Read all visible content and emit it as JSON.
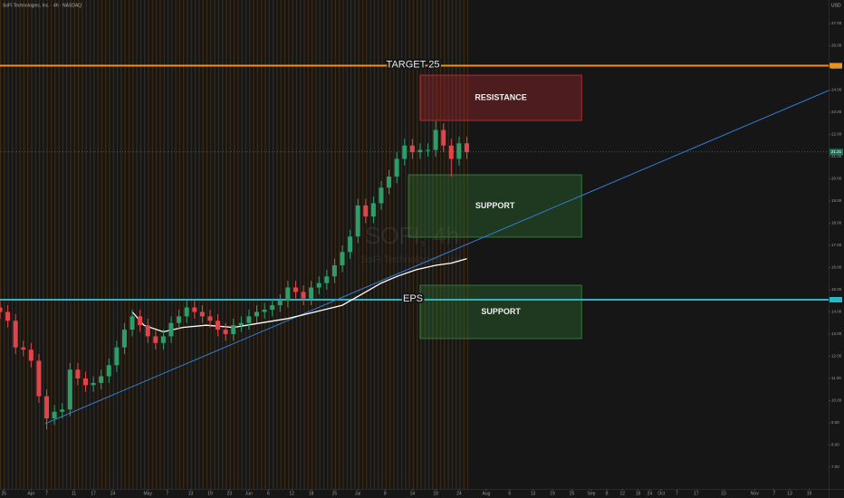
{
  "chart_data": {
    "type": "candlestick",
    "title": "SoFi Technologies, Inc. · 4h · NASDAQ",
    "currency": "USD",
    "watermark": "SOFI, 4h",
    "watermark_subtitle": "SoFi Technologies, Inc.",
    "up_color": "#2e9d6a",
    "down_color": "#e0454b",
    "x": [
      0,
      2,
      4,
      6,
      8,
      10,
      12,
      14,
      16,
      18,
      20,
      22,
      24,
      26,
      28,
      30,
      32,
      34,
      36,
      38,
      40,
      42,
      44,
      46,
      48,
      50,
      52,
      54,
      56,
      58,
      60,
      62,
      64,
      66,
      68,
      70,
      72,
      74,
      76,
      78,
      80,
      82,
      84,
      86,
      88,
      90,
      92,
      94,
      96,
      98,
      100,
      102,
      104,
      106,
      108,
      110,
      112,
      114,
      116,
      118,
      120
    ],
    "open": [
      14.2,
      14.0,
      13.6,
      12.4,
      12.3,
      11.8,
      10.2,
      9.2,
      9.5,
      9.6,
      11.4,
      11.0,
      10.7,
      10.8,
      11.1,
      11.6,
      12.4,
      13.2,
      13.8,
      13.4,
      12.9,
      12.6,
      12.9,
      13.5,
      13.8,
      14.2,
      14.0,
      13.8,
      13.6,
      13.2,
      13.0,
      13.4,
      13.5,
      13.8,
      14.0,
      14.1,
      14.3,
      14.5,
      15.1,
      14.9,
      14.6,
      15.1,
      15.3,
      15.6,
      16.1,
      16.7,
      17.4,
      18.8,
      18.3,
      18.9,
      19.6,
      20.1,
      20.9,
      21.5,
      21.2,
      21.3,
      21.3,
      22.2,
      21.5,
      20.9,
      21.6
    ],
    "high": [
      14.5,
      14.3,
      13.9,
      12.7,
      12.6,
      12.1,
      10.5,
      9.8,
      9.9,
      11.7,
      11.7,
      11.3,
      11.1,
      11.4,
      11.9,
      12.7,
      13.5,
      14.1,
      14.1,
      13.7,
      13.2,
      13.2,
      13.8,
      14.1,
      14.5,
      14.5,
      14.3,
      14.1,
      13.9,
      13.5,
      13.7,
      13.8,
      14.1,
      14.3,
      14.4,
      14.6,
      14.8,
      15.4,
      15.4,
      15.2,
      15.4,
      15.6,
      15.9,
      16.4,
      17.0,
      17.7,
      19.1,
      19.1,
      19.2,
      19.9,
      20.4,
      21.2,
      21.8,
      21.8,
      21.6,
      21.6,
      22.6,
      22.5,
      21.8,
      21.9,
      21.9
    ],
    "low": [
      13.7,
      13.3,
      12.1,
      12.0,
      11.5,
      9.9,
      8.7,
      8.9,
      9.2,
      9.3,
      10.7,
      10.4,
      10.4,
      10.5,
      10.8,
      11.3,
      12.1,
      12.9,
      13.1,
      12.6,
      12.3,
      12.3,
      12.6,
      13.2,
      13.5,
      13.7,
      13.5,
      13.3,
      12.9,
      12.7,
      12.7,
      13.1,
      13.2,
      13.5,
      13.7,
      13.8,
      14.0,
      14.2,
      14.6,
      14.3,
      14.3,
      14.8,
      15.0,
      15.3,
      15.8,
      16.4,
      17.1,
      18.0,
      18.0,
      18.6,
      19.3,
      19.8,
      20.6,
      20.9,
      20.9,
      21.0,
      21.0,
      21.2,
      20.1,
      20.6,
      20.9
    ],
    "close": [
      14.0,
      13.6,
      12.4,
      12.3,
      11.8,
      10.2,
      9.2,
      9.5,
      9.6,
      11.4,
      11.0,
      10.7,
      10.8,
      11.1,
      11.6,
      12.4,
      13.2,
      13.8,
      13.4,
      12.9,
      12.6,
      12.9,
      13.5,
      13.8,
      14.2,
      14.0,
      13.8,
      13.6,
      13.2,
      13.0,
      13.4,
      13.5,
      13.8,
      14.0,
      14.1,
      14.3,
      14.5,
      15.1,
      14.9,
      14.6,
      15.1,
      15.3,
      15.6,
      16.1,
      16.7,
      17.4,
      18.8,
      18.3,
      18.9,
      19.6,
      20.1,
      20.9,
      21.5,
      21.2,
      21.3,
      21.3,
      22.2,
      21.5,
      20.9,
      21.6,
      21.2
    ],
    "indicator": {
      "color": "#ffffff",
      "x": [
        34,
        37,
        42,
        47,
        53,
        60,
        67,
        74,
        81,
        88,
        93,
        98,
        102,
        107,
        112,
        116,
        120
      ],
      "values": [
        14.0,
        13.4,
        13.1,
        13.3,
        13.4,
        13.3,
        13.5,
        13.7,
        14.0,
        14.3,
        14.8,
        15.3,
        15.6,
        15.9,
        16.1,
        16.2,
        16.4
      ]
    },
    "trendline": {
      "color": "#2f7fd6",
      "x": [
        11.6,
        213
      ],
      "values": [
        8.96,
        23.98
      ]
    },
    "hlines": [
      {
        "label": "TARGET 25",
        "value": 25.1,
        "color": "#f0901c"
      },
      {
        "label": "EPS",
        "value": 14.55,
        "color": "#2ab7c4"
      }
    ],
    "zones": [
      {
        "label": "RESISTANCE",
        "x": [
          108,
          149.5
        ],
        "y": [
          24.67,
          22.63
        ],
        "color": "#b5292f"
      },
      {
        "label": "SUPPORT",
        "x": [
          105,
          149.5
        ],
        "y": [
          20.18,
          17.37
        ],
        "color": "#2f7a34"
      },
      {
        "label": "SUPPORT",
        "x": [
          108,
          149.5
        ],
        "y": [
          15.2,
          12.8
        ],
        "color": "#2f7a34"
      }
    ],
    "last_price": {
      "value": 21.21,
      "label": "21.21"
    },
    "xlim": [
      0,
      213
    ],
    "xticks": [
      {
        "value": 1,
        "label": "25"
      },
      {
        "value": 8,
        "label": "Apr"
      },
      {
        "value": 12,
        "label": "7"
      },
      {
        "value": 19,
        "label": "11"
      },
      {
        "value": 24,
        "label": "17"
      },
      {
        "value": 29,
        "label": "24"
      },
      {
        "value": 38,
        "label": "May"
      },
      {
        "value": 43,
        "label": "7"
      },
      {
        "value": 49,
        "label": "13"
      },
      {
        "value": 54,
        "label": "19"
      },
      {
        "value": 59,
        "label": "23"
      },
      {
        "value": 64,
        "label": "Jun"
      },
      {
        "value": 69,
        "label": "6"
      },
      {
        "value": 75,
        "label": "12"
      },
      {
        "value": 80,
        "label": "18"
      },
      {
        "value": 86,
        "label": "25"
      },
      {
        "value": 92,
        "label": "Jul"
      },
      {
        "value": 99,
        "label": "8"
      },
      {
        "value": 106,
        "label": "14"
      },
      {
        "value": 112,
        "label": "18"
      },
      {
        "value": 118,
        "label": "24"
      },
      {
        "value": 125,
        "label": "Aug"
      },
      {
        "value": 131,
        "label": "6"
      },
      {
        "value": 137,
        "label": "13"
      },
      {
        "value": 142,
        "label": "19"
      },
      {
        "value": 147,
        "label": "25"
      },
      {
        "value": 152,
        "label": "Sep"
      },
      {
        "value": 156,
        "label": "8"
      },
      {
        "value": 160,
        "label": "12"
      },
      {
        "value": 164,
        "label": "18"
      },
      {
        "value": 167,
        "label": "24"
      },
      {
        "value": 170,
        "label": "Oct"
      },
      {
        "value": 174,
        "label": "7"
      },
      {
        "value": 179,
        "label": "17"
      },
      {
        "value": 186,
        "label": "23"
      },
      {
        "value": 194,
        "label": "Nov"
      },
      {
        "value": 199,
        "label": "7"
      },
      {
        "value": 203,
        "label": "13"
      },
      {
        "value": 208,
        "label": "19"
      }
    ],
    "ylim": [
      6.02,
      28.06
    ],
    "yticks": [
      {
        "value": 7,
        "label": "7.00"
      },
      {
        "value": 8,
        "label": "8.00"
      },
      {
        "value": 9,
        "label": "9.00"
      },
      {
        "value": 10,
        "label": "10.00"
      },
      {
        "value": 11,
        "label": "11.00"
      },
      {
        "value": 12,
        "label": "12.00"
      },
      {
        "value": 13,
        "label": "13.00"
      },
      {
        "value": 14,
        "label": "14.00"
      },
      {
        "value": 15,
        "label": "15.00"
      },
      {
        "value": 16,
        "label": "16.00"
      },
      {
        "value": 17,
        "label": "17.00"
      },
      {
        "value": 18,
        "label": "18.00"
      },
      {
        "value": 19,
        "label": "19.00"
      },
      {
        "value": 20,
        "label": "20.00"
      },
      {
        "value": 21,
        "label": "21.00"
      },
      {
        "value": 22,
        "label": "22.00"
      },
      {
        "value": 23,
        "label": "23.00"
      },
      {
        "value": 24,
        "label": "24.00"
      },
      {
        "value": 25,
        "label": "25.00"
      },
      {
        "value": 26,
        "label": "26.00"
      },
      {
        "value": 27,
        "label": "27.00"
      }
    ]
  }
}
